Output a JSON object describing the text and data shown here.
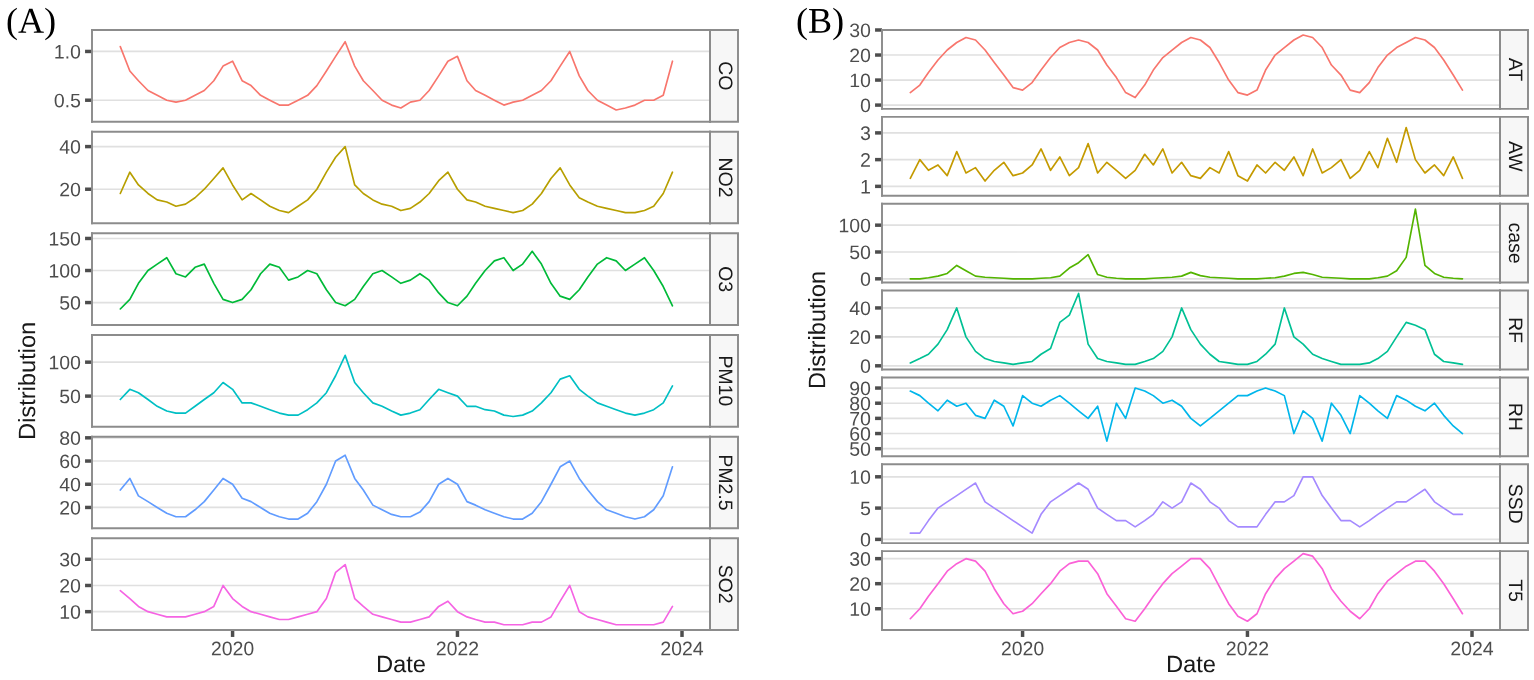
{
  "chart_data": [
    {
      "type": "line",
      "title": "CO",
      "annotations": [
        "(A)"
      ],
      "color": "#F8766D",
      "xlim": [
        "2018-10",
        "2024-04"
      ],
      "ylim": [
        0.28,
        1.22
      ],
      "yticks": [
        0.5,
        {
          "value": 1,
          "label": "1.0"
        }
      ],
      "grid": "y",
      "tick_labels": "y",
      "x": [
        "2019-01",
        "2019-02",
        "2019-03",
        "2019-04",
        "2019-05",
        "2019-06",
        "2019-07",
        "2019-08",
        "2019-09",
        "2019-10",
        "2019-11",
        "2019-12",
        "2020-01",
        "2020-02",
        "2020-03",
        "2020-04",
        "2020-05",
        "2020-06",
        "2020-07",
        "2020-08",
        "2020-09",
        "2020-10",
        "2020-11",
        "2020-12",
        "2021-01",
        "2021-02",
        "2021-03",
        "2021-04",
        "2021-05",
        "2021-06",
        "2021-07",
        "2021-08",
        "2021-09",
        "2021-10",
        "2021-11",
        "2021-12",
        "2022-01",
        "2022-02",
        "2022-03",
        "2022-04",
        "2022-05",
        "2022-06",
        "2022-07",
        "2022-08",
        "2022-09",
        "2022-10",
        "2022-11",
        "2022-12",
        "2023-01",
        "2023-02",
        "2023-03",
        "2023-04",
        "2023-05",
        "2023-06",
        "2023-07",
        "2023-08",
        "2023-09",
        "2023-10",
        "2023-11",
        "2023-12"
      ],
      "values": [
        1.05,
        0.8,
        0.7,
        0.6,
        0.55,
        0.5,
        0.48,
        0.5,
        0.55,
        0.6,
        0.7,
        0.85,
        0.9,
        0.7,
        0.65,
        0.55,
        0.5,
        0.45,
        0.45,
        0.5,
        0.55,
        0.65,
        0.8,
        0.95,
        1.1,
        0.85,
        0.7,
        0.6,
        0.5,
        0.45,
        0.42,
        0.48,
        0.5,
        0.6,
        0.75,
        0.9,
        0.95,
        0.7,
        0.6,
        0.55,
        0.5,
        0.45,
        0.48,
        0.5,
        0.55,
        0.6,
        0.7,
        0.85,
        1.0,
        0.75,
        0.6,
        0.5,
        0.45,
        0.4,
        0.42,
        0.45,
        0.5,
        0.5,
        0.55,
        0.9
      ]
    },
    {
      "type": "line",
      "title": "NO2",
      "color": "#B79F00",
      "xlim": [
        "2018-10",
        "2024-04"
      ],
      "ylim": [
        4,
        47
      ],
      "yticks": [
        20,
        40
      ],
      "grid": "y",
      "tick_labels": "y",
      "x": [
        "2019-01",
        "2019-02",
        "2019-03",
        "2019-04",
        "2019-05",
        "2019-06",
        "2019-07",
        "2019-08",
        "2019-09",
        "2019-10",
        "2019-11",
        "2019-12",
        "2020-01",
        "2020-02",
        "2020-03",
        "2020-04",
        "2020-05",
        "2020-06",
        "2020-07",
        "2020-08",
        "2020-09",
        "2020-10",
        "2020-11",
        "2020-12",
        "2021-01",
        "2021-02",
        "2021-03",
        "2021-04",
        "2021-05",
        "2021-06",
        "2021-07",
        "2021-08",
        "2021-09",
        "2021-10",
        "2021-11",
        "2021-12",
        "2022-01",
        "2022-02",
        "2022-03",
        "2022-04",
        "2022-05",
        "2022-06",
        "2022-07",
        "2022-08",
        "2022-09",
        "2022-10",
        "2022-11",
        "2022-12",
        "2023-01",
        "2023-02",
        "2023-03",
        "2023-04",
        "2023-05",
        "2023-06",
        "2023-07",
        "2023-08",
        "2023-09",
        "2023-10",
        "2023-11",
        "2023-12"
      ],
      "values": [
        18,
        28,
        22,
        18,
        15,
        14,
        12,
        13,
        16,
        20,
        25,
        30,
        22,
        15,
        18,
        15,
        12,
        10,
        9,
        12,
        15,
        20,
        28,
        35,
        40,
        22,
        18,
        15,
        13,
        12,
        10,
        11,
        14,
        18,
        24,
        28,
        20,
        15,
        14,
        12,
        11,
        10,
        9,
        10,
        13,
        18,
        25,
        30,
        22,
        16,
        14,
        12,
        11,
        10,
        9,
        9,
        10,
        12,
        18,
        28
      ]
    },
    {
      "type": "line",
      "title": "O3",
      "color": "#00BA38",
      "xlim": [
        "2018-10",
        "2024-04"
      ],
      "ylim": [
        15,
        158
      ],
      "yticks": [
        50,
        100,
        150
      ],
      "grid": "y",
      "tick_labels": "y",
      "x": [
        "2019-01",
        "2019-02",
        "2019-03",
        "2019-04",
        "2019-05",
        "2019-06",
        "2019-07",
        "2019-08",
        "2019-09",
        "2019-10",
        "2019-11",
        "2019-12",
        "2020-01",
        "2020-02",
        "2020-03",
        "2020-04",
        "2020-05",
        "2020-06",
        "2020-07",
        "2020-08",
        "2020-09",
        "2020-10",
        "2020-11",
        "2020-12",
        "2021-01",
        "2021-02",
        "2021-03",
        "2021-04",
        "2021-05",
        "2021-06",
        "2021-07",
        "2021-08",
        "2021-09",
        "2021-10",
        "2021-11",
        "2021-12",
        "2022-01",
        "2022-02",
        "2022-03",
        "2022-04",
        "2022-05",
        "2022-06",
        "2022-07",
        "2022-08",
        "2022-09",
        "2022-10",
        "2022-11",
        "2022-12",
        "2023-01",
        "2023-02",
        "2023-03",
        "2023-04",
        "2023-05",
        "2023-06",
        "2023-07",
        "2023-08",
        "2023-09",
        "2023-10",
        "2023-11",
        "2023-12"
      ],
      "values": [
        40,
        55,
        80,
        100,
        110,
        120,
        95,
        90,
        105,
        110,
        80,
        55,
        50,
        55,
        70,
        95,
        110,
        105,
        85,
        90,
        100,
        95,
        70,
        50,
        45,
        55,
        75,
        95,
        100,
        90,
        80,
        85,
        95,
        85,
        65,
        50,
        45,
        60,
        80,
        100,
        115,
        120,
        100,
        110,
        130,
        110,
        80,
        60,
        55,
        70,
        90,
        110,
        120,
        115,
        100,
        110,
        120,
        100,
        75,
        45
      ]
    },
    {
      "type": "line",
      "title": "PM10",
      "ylabel": "Distribution",
      "color": "#00BFC4",
      "xlim": [
        "2018-10",
        "2024-04"
      ],
      "ylim": [
        5,
        140
      ],
      "yticks": [
        50,
        100
      ],
      "grid": "y",
      "tick_labels": "y",
      "x": [
        "2019-01",
        "2019-02",
        "2019-03",
        "2019-04",
        "2019-05",
        "2019-06",
        "2019-07",
        "2019-08",
        "2019-09",
        "2019-10",
        "2019-11",
        "2019-12",
        "2020-01",
        "2020-02",
        "2020-03",
        "2020-04",
        "2020-05",
        "2020-06",
        "2020-07",
        "2020-08",
        "2020-09",
        "2020-10",
        "2020-11",
        "2020-12",
        "2021-01",
        "2021-02",
        "2021-03",
        "2021-04",
        "2021-05",
        "2021-06",
        "2021-07",
        "2021-08",
        "2021-09",
        "2021-10",
        "2021-11",
        "2021-12",
        "2022-01",
        "2022-02",
        "2022-03",
        "2022-04",
        "2022-05",
        "2022-06",
        "2022-07",
        "2022-08",
        "2022-09",
        "2022-10",
        "2022-11",
        "2022-12",
        "2023-01",
        "2023-02",
        "2023-03",
        "2023-04",
        "2023-05",
        "2023-06",
        "2023-07",
        "2023-08",
        "2023-09",
        "2023-10",
        "2023-11",
        "2023-12"
      ],
      "values": [
        45,
        60,
        55,
        45,
        35,
        28,
        25,
        25,
        35,
        45,
        55,
        70,
        60,
        40,
        40,
        35,
        30,
        25,
        22,
        22,
        30,
        40,
        55,
        80,
        110,
        70,
        55,
        40,
        35,
        28,
        22,
        25,
        30,
        45,
        60,
        55,
        50,
        35,
        35,
        30,
        28,
        22,
        20,
        22,
        28,
        40,
        55,
        75,
        80,
        60,
        50,
        40,
        35,
        30,
        25,
        22,
        25,
        30,
        40,
        65
      ]
    },
    {
      "type": "line",
      "title": "PM2.5",
      "color": "#619CFF",
      "xlim": [
        "2018-10",
        "2024-04"
      ],
      "ylim": [
        2,
        81
      ],
      "yticks": [
        20,
        40,
        60,
        80
      ],
      "grid": "y",
      "tick_labels": "y",
      "x": [
        "2019-01",
        "2019-02",
        "2019-03",
        "2019-04",
        "2019-05",
        "2019-06",
        "2019-07",
        "2019-08",
        "2019-09",
        "2019-10",
        "2019-11",
        "2019-12",
        "2020-01",
        "2020-02",
        "2020-03",
        "2020-04",
        "2020-05",
        "2020-06",
        "2020-07",
        "2020-08",
        "2020-09",
        "2020-10",
        "2020-11",
        "2020-12",
        "2021-01",
        "2021-02",
        "2021-03",
        "2021-04",
        "2021-05",
        "2021-06",
        "2021-07",
        "2021-08",
        "2021-09",
        "2021-10",
        "2021-11",
        "2021-12",
        "2022-01",
        "2022-02",
        "2022-03",
        "2022-04",
        "2022-05",
        "2022-06",
        "2022-07",
        "2022-08",
        "2022-09",
        "2022-10",
        "2022-11",
        "2022-12",
        "2023-01",
        "2023-02",
        "2023-03",
        "2023-04",
        "2023-05",
        "2023-06",
        "2023-07",
        "2023-08",
        "2023-09",
        "2023-10",
        "2023-11",
        "2023-12"
      ],
      "values": [
        35,
        45,
        30,
        25,
        20,
        15,
        12,
        12,
        18,
        25,
        35,
        45,
        40,
        28,
        25,
        20,
        15,
        12,
        10,
        10,
        15,
        25,
        40,
        60,
        65,
        45,
        35,
        22,
        18,
        14,
        12,
        12,
        16,
        25,
        40,
        45,
        40,
        25,
        22,
        18,
        15,
        12,
        10,
        10,
        15,
        25,
        40,
        55,
        60,
        45,
        35,
        25,
        18,
        15,
        12,
        10,
        12,
        18,
        30,
        55
      ]
    },
    {
      "type": "line",
      "title": "SO2",
      "xlabel": "Date",
      "color": "#F564E3",
      "xlim": [
        "2018-10",
        "2024-04"
      ],
      "ylim": [
        3,
        38
      ],
      "yticks": [
        10,
        20,
        30
      ],
      "xticks": [
        "2020",
        "2022",
        "2024"
      ],
      "grid": "y",
      "x": [
        "2019-01",
        "2019-02",
        "2019-03",
        "2019-04",
        "2019-05",
        "2019-06",
        "2019-07",
        "2019-08",
        "2019-09",
        "2019-10",
        "2019-11",
        "2019-12",
        "2020-01",
        "2020-02",
        "2020-03",
        "2020-04",
        "2020-05",
        "2020-06",
        "2020-07",
        "2020-08",
        "2020-09",
        "2020-10",
        "2020-11",
        "2020-12",
        "2021-01",
        "2021-02",
        "2021-03",
        "2021-04",
        "2021-05",
        "2021-06",
        "2021-07",
        "2021-08",
        "2021-09",
        "2021-10",
        "2021-11",
        "2021-12",
        "2022-01",
        "2022-02",
        "2022-03",
        "2022-04",
        "2022-05",
        "2022-06",
        "2022-07",
        "2022-08",
        "2022-09",
        "2022-10",
        "2022-11",
        "2022-12",
        "2023-01",
        "2023-02",
        "2023-03",
        "2023-04",
        "2023-05",
        "2023-06",
        "2023-07",
        "2023-08",
        "2023-09",
        "2023-10",
        "2023-11",
        "2023-12"
      ],
      "values": [
        18,
        15,
        12,
        10,
        9,
        8,
        8,
        8,
        9,
        10,
        12,
        20,
        15,
        12,
        10,
        9,
        8,
        7,
        7,
        8,
        9,
        10,
        15,
        25,
        28,
        15,
        12,
        9,
        8,
        7,
        6,
        6,
        7,
        8,
        12,
        14,
        10,
        8,
        7,
        6,
        6,
        5,
        5,
        5,
        6,
        6,
        8,
        14,
        20,
        10,
        8,
        7,
        6,
        5,
        5,
        5,
        5,
        5,
        6,
        12
      ]
    },
    {
      "type": "line",
      "title": "AT",
      "annotations": [
        "(B)"
      ],
      "color": "#F8766D",
      "xlim": [
        "2018-10",
        "2024-04"
      ],
      "ylim": [
        -1.5,
        30
      ],
      "yticks": [
        0,
        10,
        20,
        30
      ],
      "grid": "y",
      "tick_labels": "y",
      "x": [
        "2019-01",
        "2019-02",
        "2019-03",
        "2019-04",
        "2019-05",
        "2019-06",
        "2019-07",
        "2019-08",
        "2019-09",
        "2019-10",
        "2019-11",
        "2019-12",
        "2020-01",
        "2020-02",
        "2020-03",
        "2020-04",
        "2020-05",
        "2020-06",
        "2020-07",
        "2020-08",
        "2020-09",
        "2020-10",
        "2020-11",
        "2020-12",
        "2021-01",
        "2021-02",
        "2021-03",
        "2021-04",
        "2021-05",
        "2021-06",
        "2021-07",
        "2021-08",
        "2021-09",
        "2021-10",
        "2021-11",
        "2021-12",
        "2022-01",
        "2022-02",
        "2022-03",
        "2022-04",
        "2022-05",
        "2022-06",
        "2022-07",
        "2022-08",
        "2022-09",
        "2022-10",
        "2022-11",
        "2022-12",
        "2023-01",
        "2023-02",
        "2023-03",
        "2023-04",
        "2023-05",
        "2023-06",
        "2023-07",
        "2023-08",
        "2023-09",
        "2023-10",
        "2023-11",
        "2023-12"
      ],
      "values": [
        5,
        8,
        13,
        18,
        22,
        25,
        27,
        26,
        22,
        17,
        12,
        7,
        6,
        9,
        14,
        19,
        23,
        25,
        26,
        25,
        22,
        16,
        11,
        5,
        3,
        8,
        14,
        19,
        22,
        25,
        27,
        26,
        23,
        17,
        10,
        5,
        4,
        6,
        14,
        20,
        23,
        26,
        28,
        27,
        23,
        16,
        12,
        6,
        5,
        9,
        15,
        20,
        23,
        25,
        27,
        26,
        23,
        18,
        12,
        6
      ]
    },
    {
      "type": "line",
      "title": "AW",
      "color": "#C49A00",
      "xlim": [
        "2018-10",
        "2024-04"
      ],
      "ylim": [
        0.65,
        3.6
      ],
      "yticks": [
        1,
        2,
        3
      ],
      "grid": "y",
      "tick_labels": "y",
      "x": [
        "2019-01",
        "2019-02",
        "2019-03",
        "2019-04",
        "2019-05",
        "2019-06",
        "2019-07",
        "2019-08",
        "2019-09",
        "2019-10",
        "2019-11",
        "2019-12",
        "2020-01",
        "2020-02",
        "2020-03",
        "2020-04",
        "2020-05",
        "2020-06",
        "2020-07",
        "2020-08",
        "2020-09",
        "2020-10",
        "2020-11",
        "2020-12",
        "2021-01",
        "2021-02",
        "2021-03",
        "2021-04",
        "2021-05",
        "2021-06",
        "2021-07",
        "2021-08",
        "2021-09",
        "2021-10",
        "2021-11",
        "2021-12",
        "2022-01",
        "2022-02",
        "2022-03",
        "2022-04",
        "2022-05",
        "2022-06",
        "2022-07",
        "2022-08",
        "2022-09",
        "2022-10",
        "2022-11",
        "2022-12",
        "2023-01",
        "2023-02",
        "2023-03",
        "2023-04",
        "2023-05",
        "2023-06",
        "2023-07",
        "2023-08",
        "2023-09",
        "2023-10",
        "2023-11",
        "2023-12"
      ],
      "values": [
        1.3,
        2.0,
        1.6,
        1.8,
        1.4,
        2.3,
        1.5,
        1.7,
        1.2,
        1.6,
        1.9,
        1.4,
        1.5,
        1.8,
        2.4,
        1.6,
        2.1,
        1.4,
        1.7,
        2.6,
        1.5,
        1.9,
        1.6,
        1.3,
        1.6,
        2.2,
        1.8,
        2.4,
        1.5,
        1.9,
        1.4,
        1.3,
        1.7,
        1.5,
        2.3,
        1.4,
        1.2,
        1.8,
        1.5,
        1.9,
        1.6,
        2.1,
        1.4,
        2.4,
        1.5,
        1.7,
        2.0,
        1.3,
        1.6,
        2.3,
        1.7,
        2.8,
        1.9,
        3.2,
        2.0,
        1.5,
        1.8,
        1.4,
        2.1,
        1.3
      ]
    },
    {
      "type": "line",
      "title": "case",
      "color": "#53B400",
      "xlim": [
        "2018-10",
        "2024-04"
      ],
      "ylim": [
        -7,
        140
      ],
      "yticks": [
        0,
        50,
        100
      ],
      "grid": "y",
      "tick_labels": "y",
      "x": [
        "2019-01",
        "2019-02",
        "2019-03",
        "2019-04",
        "2019-05",
        "2019-06",
        "2019-07",
        "2019-08",
        "2019-09",
        "2019-10",
        "2019-11",
        "2019-12",
        "2020-01",
        "2020-02",
        "2020-03",
        "2020-04",
        "2020-05",
        "2020-06",
        "2020-07",
        "2020-08",
        "2020-09",
        "2020-10",
        "2020-11",
        "2020-12",
        "2021-01",
        "2021-02",
        "2021-03",
        "2021-04",
        "2021-05",
        "2021-06",
        "2021-07",
        "2021-08",
        "2021-09",
        "2021-10",
        "2021-11",
        "2021-12",
        "2022-01",
        "2022-02",
        "2022-03",
        "2022-04",
        "2022-05",
        "2022-06",
        "2022-07",
        "2022-08",
        "2022-09",
        "2022-10",
        "2022-11",
        "2022-12",
        "2023-01",
        "2023-02",
        "2023-03",
        "2023-04",
        "2023-05",
        "2023-06",
        "2023-07",
        "2023-08",
        "2023-09",
        "2023-10",
        "2023-11",
        "2023-12"
      ],
      "values": [
        0,
        0,
        2,
        5,
        10,
        25,
        15,
        5,
        3,
        2,
        1,
        0,
        0,
        0,
        1,
        2,
        5,
        20,
        30,
        45,
        8,
        3,
        1,
        0,
        0,
        0,
        1,
        2,
        3,
        5,
        12,
        6,
        3,
        2,
        1,
        0,
        0,
        0,
        1,
        2,
        5,
        10,
        12,
        8,
        3,
        2,
        1,
        0,
        0,
        0,
        2,
        5,
        15,
        40,
        130,
        25,
        10,
        3,
        1,
        0
      ]
    },
    {
      "type": "line",
      "title": "RF",
      "ylabel": "Distribution",
      "color": "#00C094",
      "xlim": [
        "2018-10",
        "2024-04"
      ],
      "ylim": [
        -2.5,
        52
      ],
      "yticks": [
        0,
        20,
        40
      ],
      "grid": "y",
      "tick_labels": "y",
      "x": [
        "2019-01",
        "2019-02",
        "2019-03",
        "2019-04",
        "2019-05",
        "2019-06",
        "2019-07",
        "2019-08",
        "2019-09",
        "2019-10",
        "2019-11",
        "2019-12",
        "2020-01",
        "2020-02",
        "2020-03",
        "2020-04",
        "2020-05",
        "2020-06",
        "2020-07",
        "2020-08",
        "2020-09",
        "2020-10",
        "2020-11",
        "2020-12",
        "2021-01",
        "2021-02",
        "2021-03",
        "2021-04",
        "2021-05",
        "2021-06",
        "2021-07",
        "2021-08",
        "2021-09",
        "2021-10",
        "2021-11",
        "2021-12",
        "2022-01",
        "2022-02",
        "2022-03",
        "2022-04",
        "2022-05",
        "2022-06",
        "2022-07",
        "2022-08",
        "2022-09",
        "2022-10",
        "2022-11",
        "2022-12",
        "2023-01",
        "2023-02",
        "2023-03",
        "2023-04",
        "2023-05",
        "2023-06",
        "2023-07",
        "2023-08",
        "2023-09",
        "2023-10",
        "2023-11",
        "2023-12"
      ],
      "values": [
        2,
        5,
        8,
        15,
        25,
        40,
        20,
        10,
        5,
        3,
        2,
        1,
        2,
        3,
        8,
        12,
        30,
        35,
        50,
        15,
        5,
        3,
        2,
        1,
        1,
        3,
        5,
        10,
        20,
        40,
        25,
        15,
        8,
        3,
        2,
        1,
        1,
        3,
        8,
        15,
        40,
        20,
        15,
        8,
        5,
        3,
        1,
        1,
        1,
        2,
        5,
        10,
        20,
        30,
        28,
        25,
        8,
        3,
        2,
        1
      ]
    },
    {
      "type": "line",
      "title": "RH",
      "color": "#00B6EB",
      "xlim": [
        "2018-10",
        "2024-04"
      ],
      "ylim": [
        45,
        97
      ],
      "yticks": [
        50,
        60,
        70,
        80,
        90
      ],
      "grid": "y",
      "tick_labels": "y",
      "x": [
        "2019-01",
        "2019-02",
        "2019-03",
        "2019-04",
        "2019-05",
        "2019-06",
        "2019-07",
        "2019-08",
        "2019-09",
        "2019-10",
        "2019-11",
        "2019-12",
        "2020-01",
        "2020-02",
        "2020-03",
        "2020-04",
        "2020-05",
        "2020-06",
        "2020-07",
        "2020-08",
        "2020-09",
        "2020-10",
        "2020-11",
        "2020-12",
        "2021-01",
        "2021-02",
        "2021-03",
        "2021-04",
        "2021-05",
        "2021-06",
        "2021-07",
        "2021-08",
        "2021-09",
        "2021-10",
        "2021-11",
        "2021-12",
        "2022-01",
        "2022-02",
        "2022-03",
        "2022-04",
        "2022-05",
        "2022-06",
        "2022-07",
        "2022-08",
        "2022-09",
        "2022-10",
        "2022-11",
        "2022-12",
        "2023-01",
        "2023-02",
        "2023-03",
        "2023-04",
        "2023-05",
        "2023-06",
        "2023-07",
        "2023-08",
        "2023-09",
        "2023-10",
        "2023-11",
        "2023-12"
      ],
      "values": [
        88,
        85,
        80,
        75,
        82,
        78,
        80,
        72,
        70,
        82,
        78,
        65,
        85,
        80,
        78,
        82,
        85,
        80,
        75,
        70,
        78,
        55,
        80,
        70,
        90,
        88,
        85,
        80,
        82,
        78,
        70,
        65,
        70,
        75,
        80,
        85,
        85,
        88,
        90,
        88,
        85,
        60,
        75,
        70,
        55,
        80,
        72,
        60,
        85,
        80,
        75,
        70,
        85,
        82,
        78,
        75,
        80,
        72,
        65,
        60
      ]
    },
    {
      "type": "line",
      "title": "SSD",
      "color": "#A58AFF",
      "xlim": [
        "2018-10",
        "2024-04"
      ],
      "ylim": [
        -0.6,
        12
      ],
      "yticks": [
        0,
        5,
        10
      ],
      "grid": "y",
      "tick_labels": "y",
      "x": [
        "2019-01",
        "2019-02",
        "2019-03",
        "2019-04",
        "2019-05",
        "2019-06",
        "2019-07",
        "2019-08",
        "2019-09",
        "2019-10",
        "2019-11",
        "2019-12",
        "2020-01",
        "2020-02",
        "2020-03",
        "2020-04",
        "2020-05",
        "2020-06",
        "2020-07",
        "2020-08",
        "2020-09",
        "2020-10",
        "2020-11",
        "2020-12",
        "2021-01",
        "2021-02",
        "2021-03",
        "2021-04",
        "2021-05",
        "2021-06",
        "2021-07",
        "2021-08",
        "2021-09",
        "2021-10",
        "2021-11",
        "2021-12",
        "2022-01",
        "2022-02",
        "2022-03",
        "2022-04",
        "2022-05",
        "2022-06",
        "2022-07",
        "2022-08",
        "2022-09",
        "2022-10",
        "2022-11",
        "2022-12",
        "2023-01",
        "2023-02",
        "2023-03",
        "2023-04",
        "2023-05",
        "2023-06",
        "2023-07",
        "2023-08",
        "2023-09",
        "2023-10",
        "2023-11",
        "2023-12"
      ],
      "values": [
        1,
        1,
        3,
        5,
        6,
        7,
        8,
        9,
        6,
        5,
        4,
        3,
        2,
        1,
        4,
        6,
        7,
        8,
        9,
        8,
        5,
        4,
        3,
        3,
        2,
        3,
        4,
        6,
        5,
        6,
        9,
        8,
        6,
        5,
        3,
        2,
        2,
        2,
        4,
        6,
        6,
        7,
        10,
        10,
        7,
        5,
        3,
        3,
        2,
        3,
        4,
        5,
        6,
        6,
        7,
        8,
        6,
        5,
        4,
        4
      ]
    },
    {
      "type": "line",
      "title": "T5",
      "xlabel": "Date",
      "color": "#FB61D7",
      "xlim": [
        "2018-10",
        "2024-04"
      ],
      "ylim": [
        1.5,
        33
      ],
      "yticks": [
        10,
        20,
        30
      ],
      "xticks": [
        "2020",
        "2022",
        "2024"
      ],
      "grid": "y",
      "x": [
        "2019-01",
        "2019-02",
        "2019-03",
        "2019-04",
        "2019-05",
        "2019-06",
        "2019-07",
        "2019-08",
        "2019-09",
        "2019-10",
        "2019-11",
        "2019-12",
        "2020-01",
        "2020-02",
        "2020-03",
        "2020-04",
        "2020-05",
        "2020-06",
        "2020-07",
        "2020-08",
        "2020-09",
        "2020-10",
        "2020-11",
        "2020-12",
        "2021-01",
        "2021-02",
        "2021-03",
        "2021-04",
        "2021-05",
        "2021-06",
        "2021-07",
        "2021-08",
        "2021-09",
        "2021-10",
        "2021-11",
        "2021-12",
        "2022-01",
        "2022-02",
        "2022-03",
        "2022-04",
        "2022-05",
        "2022-06",
        "2022-07",
        "2022-08",
        "2022-09",
        "2022-10",
        "2022-11",
        "2022-12",
        "2023-01",
        "2023-02",
        "2023-03",
        "2023-04",
        "2023-05",
        "2023-06",
        "2023-07",
        "2023-08",
        "2023-09",
        "2023-10",
        "2023-11",
        "2023-12"
      ],
      "values": [
        6,
        10,
        15,
        20,
        25,
        28,
        30,
        29,
        25,
        18,
        12,
        8,
        9,
        12,
        16,
        20,
        25,
        28,
        29,
        29,
        24,
        16,
        11,
        6,
        5,
        10,
        15,
        20,
        24,
        27,
        30,
        30,
        26,
        19,
        12,
        7,
        5,
        8,
        16,
        22,
        26,
        29,
        32,
        31,
        26,
        18,
        13,
        9,
        6,
        10,
        16,
        21,
        24,
        27,
        29,
        29,
        25,
        20,
        14,
        8
      ]
    }
  ]
}
